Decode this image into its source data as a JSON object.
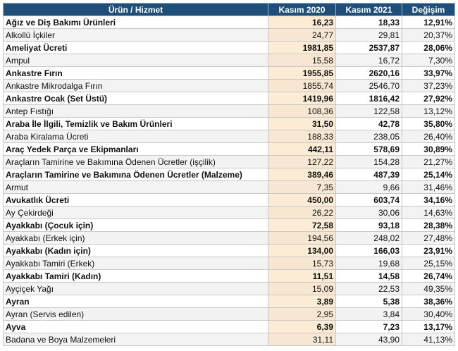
{
  "headers": [
    "Ürün / Hizmet",
    "Kasım 2020",
    "Kasım 2021",
    "Değişim"
  ],
  "rows": [
    {
      "name": "Ağız ve Diş Bakımı Ürünleri",
      "k2020": "16,23",
      "k2021": "18,33",
      "change": "12,91%",
      "bold": true
    },
    {
      "name": "Alkollü İçkiler",
      "k2020": "24,77",
      "k2021": "29,81",
      "change": "20,37%",
      "bold": false
    },
    {
      "name": "Ameliyat Ücreti",
      "k2020": "1981,85",
      "k2021": "2537,87",
      "change": "28,06%",
      "bold": true
    },
    {
      "name": "Ampul",
      "k2020": "15,58",
      "k2021": "16,72",
      "change": "7,30%",
      "bold": false
    },
    {
      "name": "Ankastre Fırın",
      "k2020": "1955,85",
      "k2021": "2620,16",
      "change": "33,97%",
      "bold": true
    },
    {
      "name": "Ankastre Mikrodalga Fırın",
      "k2020": "1855,74",
      "k2021": "2546,70",
      "change": "37,23%",
      "bold": false
    },
    {
      "name": "Ankastre Ocak (Set Üstü)",
      "k2020": "1419,96",
      "k2021": "1816,42",
      "change": "27,92%",
      "bold": true
    },
    {
      "name": "Antep Fıstığı",
      "k2020": "108,36",
      "k2021": "122,58",
      "change": "13,12%",
      "bold": false
    },
    {
      "name": "Araba İle İlgili, Temizlik ve Bakım Ürünleri",
      "k2020": "31,50",
      "k2021": "42,78",
      "change": "35,80%",
      "bold": true
    },
    {
      "name": "Araba Kiralama Ücreti",
      "k2020": "188,33",
      "k2021": "238,05",
      "change": "26,40%",
      "bold": false
    },
    {
      "name": "Araç Yedek Parça ve Ekipmanları",
      "k2020": "442,11",
      "k2021": "578,69",
      "change": "30,89%",
      "bold": true
    },
    {
      "name": "Araçların Tamirine ve Bakımına Ödenen Ücretler (işçilik)",
      "k2020": "127,22",
      "k2021": "154,28",
      "change": "21,27%",
      "bold": false
    },
    {
      "name": "Araçların Tamirine ve Bakımına Ödenen Ücretler (Malzeme)",
      "k2020": "389,46",
      "k2021": "487,39",
      "change": "25,14%",
      "bold": true
    },
    {
      "name": "Armut",
      "k2020": "7,35",
      "k2021": "9,66",
      "change": "31,46%",
      "bold": false
    },
    {
      "name": "Avukatlık Ücreti",
      "k2020": "450,00",
      "k2021": "603,74",
      "change": "34,16%",
      "bold": true
    },
    {
      "name": "Ay Çekirdeği",
      "k2020": "26,22",
      "k2021": "30,06",
      "change": "14,63%",
      "bold": false
    },
    {
      "name": "Ayakkabı (Çocuk için)",
      "k2020": "72,58",
      "k2021": "93,18",
      "change": "28,38%",
      "bold": true
    },
    {
      "name": "Ayakkabı (Erkek için)",
      "k2020": "194,56",
      "k2021": "248,02",
      "change": "27,48%",
      "bold": false
    },
    {
      "name": "Ayakkabı (Kadın için)",
      "k2020": "134,00",
      "k2021": "166,03",
      "change": "23,91%",
      "bold": true
    },
    {
      "name": "Ayakkabı Tamiri (Erkek)",
      "k2020": "15,73",
      "k2021": "19,68",
      "change": "25,15%",
      "bold": false
    },
    {
      "name": "Ayakkabı Tamiri (Kadın)",
      "k2020": "11,51",
      "k2021": "14,58",
      "change": "26,74%",
      "bold": true
    },
    {
      "name": "Ayçiçek Yağı",
      "k2020": "15,09",
      "k2021": "22,53",
      "change": "49,35%",
      "bold": false
    },
    {
      "name": "Ayran",
      "k2020": "3,89",
      "k2021": "5,38",
      "change": "38,36%",
      "bold": true
    },
    {
      "name": "Ayran (Servis edilen)",
      "k2020": "2,95",
      "k2021": "3,84",
      "change": "30,40%",
      "bold": false
    },
    {
      "name": "Ayva",
      "k2020": "6,39",
      "k2021": "7,23",
      "change": "13,17%",
      "bold": true
    },
    {
      "name": "Badana ve Boya Malzemeleri",
      "k2020": "31,11",
      "k2021": "43,90",
      "change": "41,13%",
      "bold": false
    }
  ],
  "colors": {
    "header_bg": "#1f4e79",
    "header_text": "#ffffff",
    "kasim2020_tint": "#fcebd5",
    "row_alt": "#f3f3f3"
  }
}
